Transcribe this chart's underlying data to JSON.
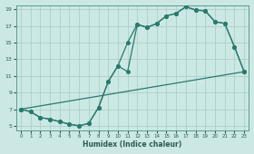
{
  "xlabel": "Humidex (Indice chaleur)",
  "background_color": "#cce8e4",
  "grid_color": "#aacfcb",
  "line_color": "#2a7a6e",
  "xlim": [
    -0.5,
    23.5
  ],
  "ylim": [
    4.5,
    19.5
  ],
  "xticks": [
    0,
    1,
    2,
    3,
    4,
    5,
    6,
    7,
    8,
    9,
    10,
    11,
    12,
    13,
    14,
    15,
    16,
    17,
    18,
    19,
    20,
    21,
    22,
    23
  ],
  "yticks": [
    5,
    7,
    9,
    11,
    13,
    15,
    17,
    19
  ],
  "line1_x": [
    0,
    1,
    2,
    3,
    4,
    5,
    6,
    7,
    8,
    9,
    10,
    11,
    12,
    13,
    14,
    15,
    16,
    17,
    18,
    19,
    20,
    21,
    22,
    23
  ],
  "line1_y": [
    7.0,
    6.7,
    6.0,
    5.8,
    5.5,
    5.2,
    5.0,
    5.3,
    7.2,
    10.3,
    12.2,
    11.5,
    17.2,
    16.8,
    17.3,
    18.2,
    18.5,
    19.3,
    18.9,
    18.8,
    17.5,
    17.3,
    14.5,
    11.5
  ],
  "line2_x": [
    0,
    1,
    2,
    3,
    4,
    5,
    6,
    7,
    8,
    9,
    10,
    11,
    12,
    13,
    14,
    15,
    16,
    17,
    18,
    19,
    20,
    21,
    22,
    23
  ],
  "line2_y": [
    7.0,
    6.7,
    6.0,
    5.8,
    5.5,
    5.2,
    5.0,
    5.3,
    7.2,
    10.3,
    12.2,
    15.0,
    17.2,
    16.8,
    17.3,
    18.2,
    18.5,
    19.3,
    18.9,
    18.8,
    17.5,
    17.3,
    14.5,
    11.5
  ],
  "line3_x": [
    0,
    23
  ],
  "line3_y": [
    7.0,
    11.5
  ],
  "marker_size": 2.5,
  "linewidth": 0.9
}
